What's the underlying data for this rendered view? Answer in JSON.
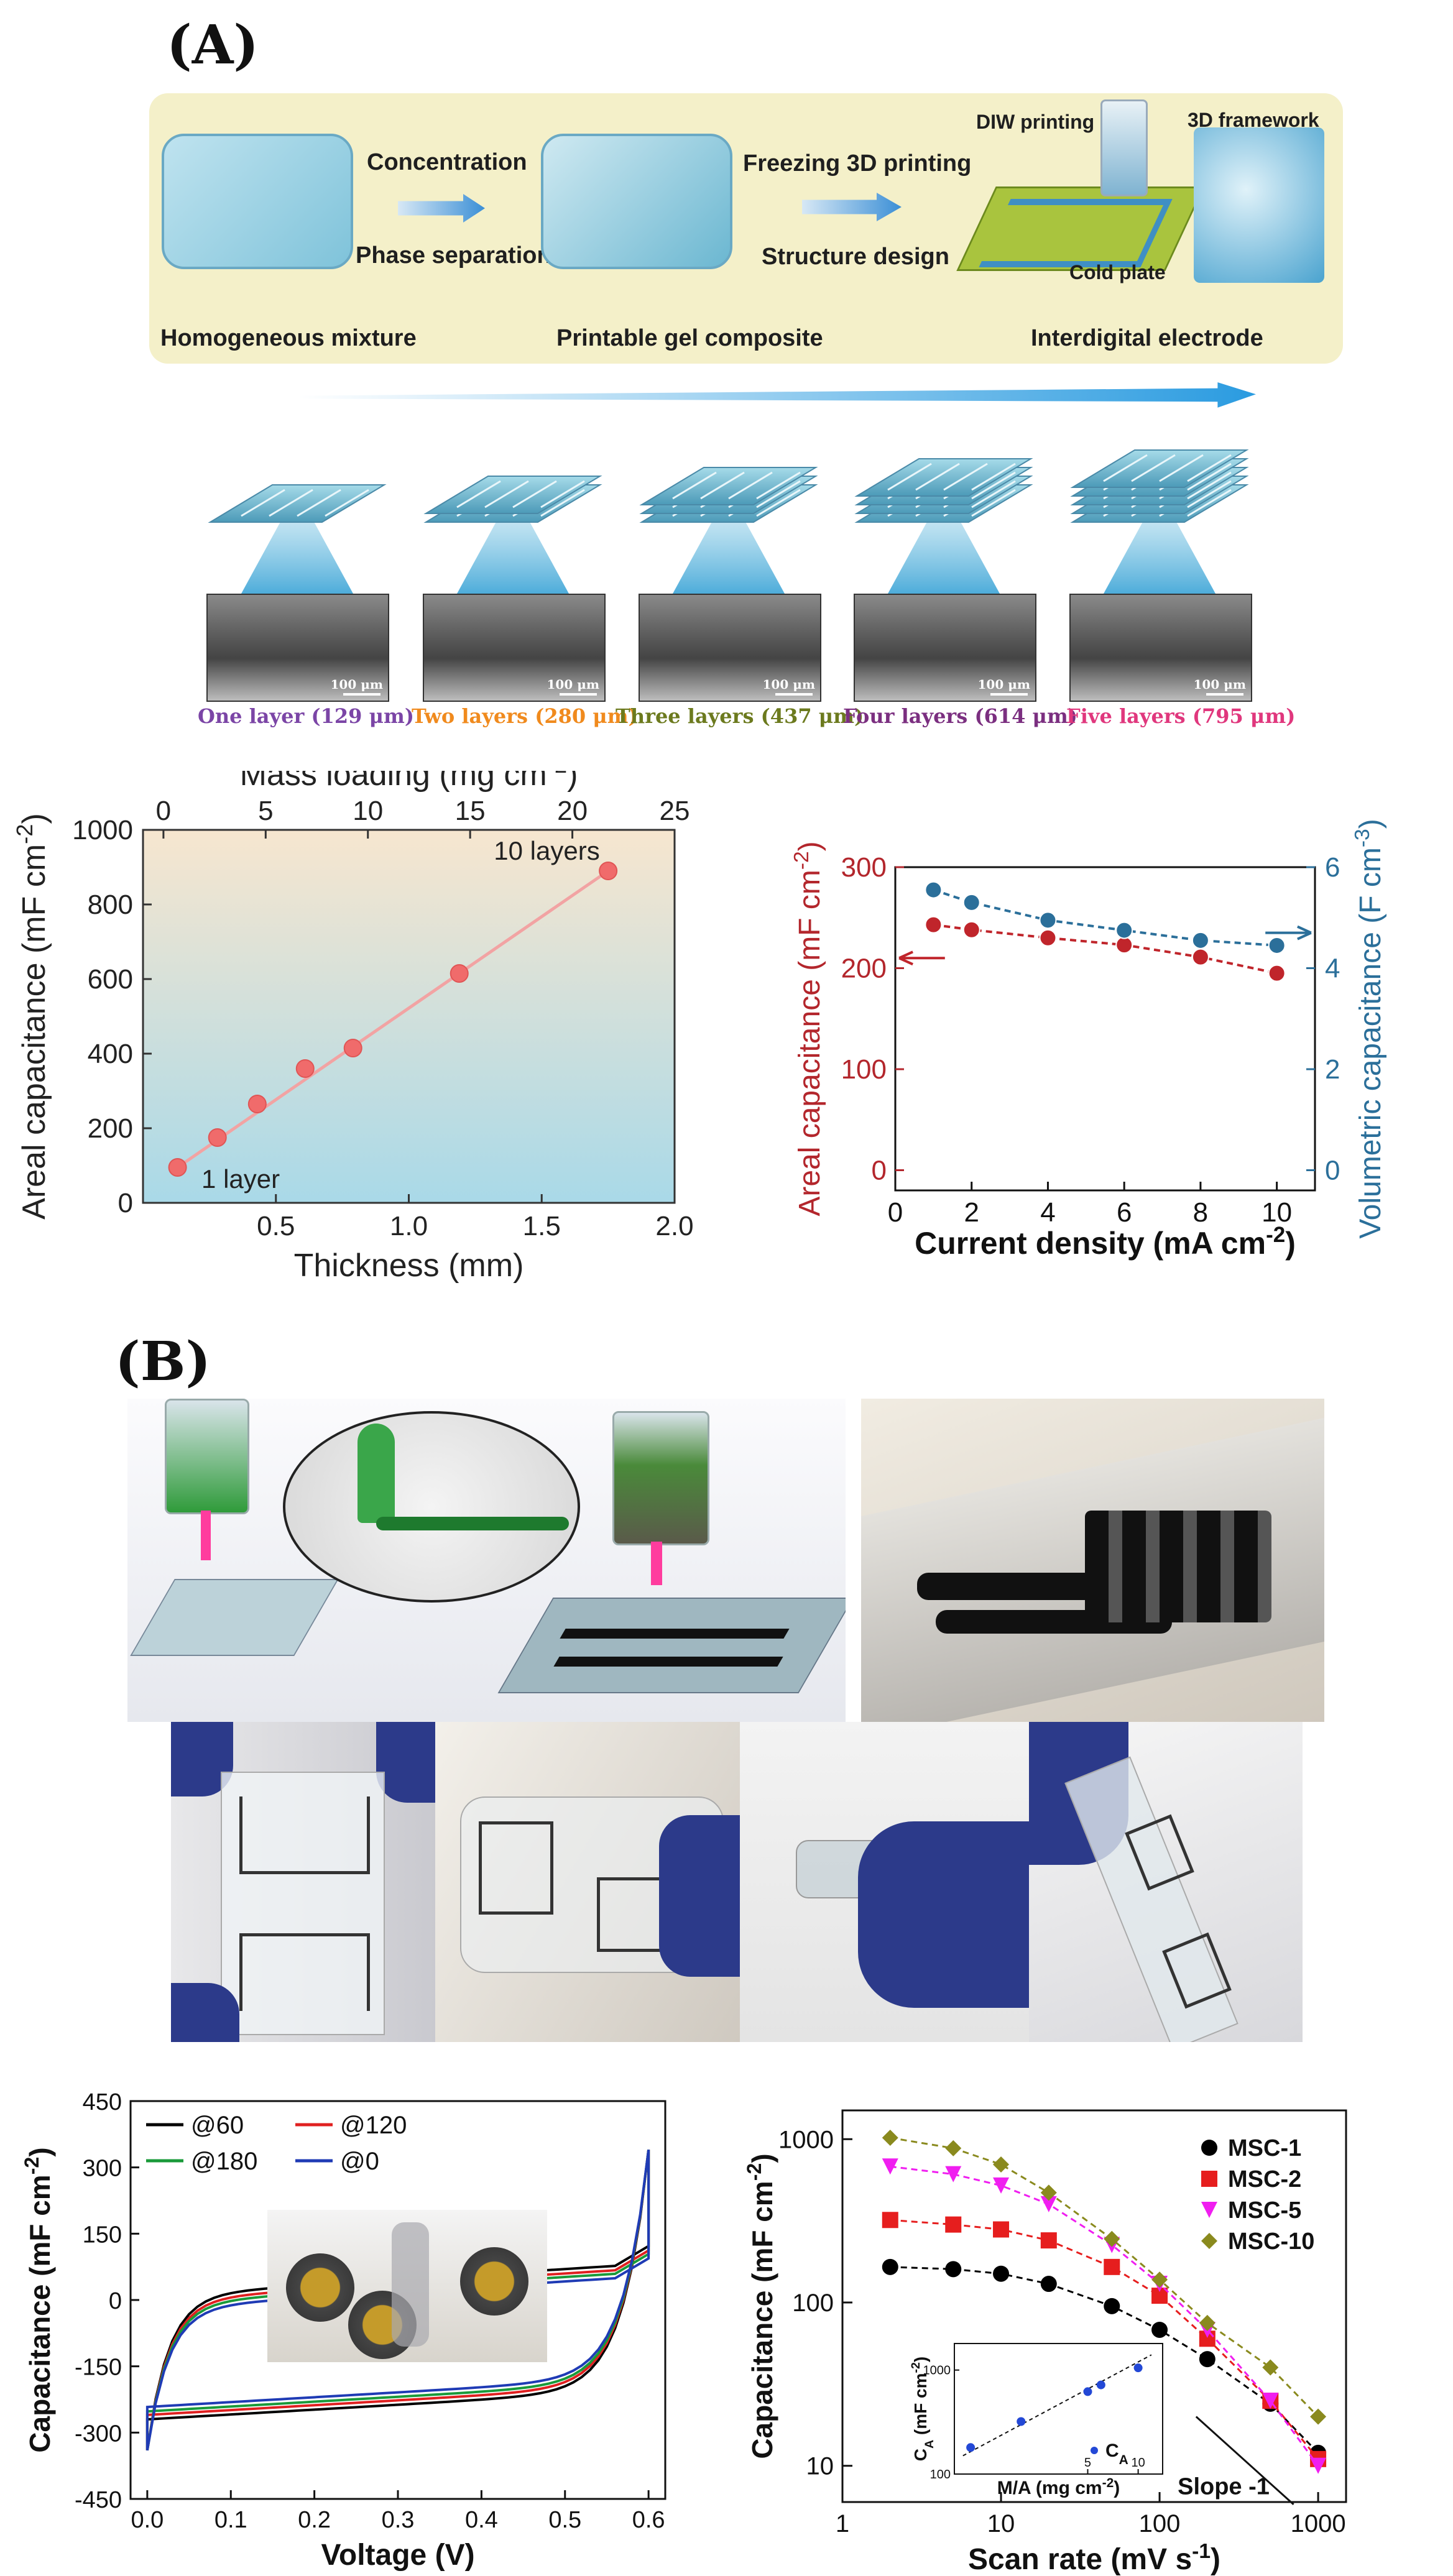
{
  "panels": {
    "a_label": "(A)",
    "b_label": "(B)"
  },
  "schematic": {
    "step1": "Concentration",
    "step2": "Phase separation",
    "step3": "Freezing 3D printing",
    "step4": "Structure design",
    "stage1": "Homogeneous mixture",
    "stage2": "Printable gel composite",
    "stage3": "Interdigital electrode",
    "diw": "DIW printing",
    "framework": "3D framework",
    "cold_plate": "Cold plate"
  },
  "layers": {
    "scale": "100 μm",
    "items": [
      {
        "label": "One layer (129 μm)",
        "color": "#7b45a6"
      },
      {
        "label": "Two layers (280 μm)",
        "color": "#f08a1d"
      },
      {
        "label": "Three layers (437 μm)",
        "color": "#6c7a1e"
      },
      {
        "label": "Four layers (614 μm)",
        "color": "#7b2f80"
      },
      {
        "label": "Five layers (795 μm)",
        "color": "#e0377d"
      }
    ]
  },
  "photos": {
    "b_top_left": "printing-schematic",
    "b_top_right": "printed-electrode-photo",
    "b_flex_1": "flexible-device-photo-1",
    "b_flex_2": "flexible-device-photo-2",
    "b_flex_3": "flexible-device-photo-3",
    "b_flex_4": "flexible-device-photo-4",
    "cv_inset": "device-photo"
  },
  "chart_data": [
    {
      "type": "scatter",
      "xlabel": "Thickness (mm)",
      "x2label": "Mass loading (mg cm",
      "x2label_sup": "-2",
      "ylabel": "Areal capacitance (mF cm",
      "ylabel_sup": "-2",
      "xlim": [
        0,
        2.0
      ],
      "ylim": [
        0,
        1000
      ],
      "x2lim": [
        -1,
        25
      ],
      "x_ticks": [
        "0.5",
        "1.0",
        "1.5",
        "2.0"
      ],
      "x2_ticks": [
        "0",
        "5",
        "10",
        "15",
        "20",
        "25"
      ],
      "y_ticks": [
        "0",
        "200",
        "400",
        "600",
        "800",
        "1000"
      ],
      "annotations": [
        "1 layer",
        "10 layers"
      ],
      "points": [
        {
          "x": 0.13,
          "y": 95
        },
        {
          "x": 0.28,
          "y": 175
        },
        {
          "x": 0.43,
          "y": 265
        },
        {
          "x": 0.61,
          "y": 360
        },
        {
          "x": 0.79,
          "y": 415
        },
        {
          "x": 1.19,
          "y": 615
        },
        {
          "x": 1.75,
          "y": 890
        }
      ],
      "colors": {
        "point": "#f06b6b",
        "line": "#f2a3a3",
        "bg_top": "#f7e6cf",
        "bg_bottom": "#a9d9e8"
      }
    },
    {
      "type": "line",
      "xlabel": "Current density (mA cm",
      "xlabel_sup": "-2",
      "ylabel": "Areal capacitance (mF cm",
      "ylabel_sup": "-2",
      "y2label": "Volumetric capacitance (F cm",
      "y2label_sup": "-3",
      "xlim": [
        0,
        11
      ],
      "ylim": [
        -20,
        300
      ],
      "y2lim": [
        -0.4,
        6
      ],
      "x_ticks": [
        "0",
        "2",
        "4",
        "6",
        "8",
        "10"
      ],
      "y_ticks": [
        "0",
        "100",
        "200",
        "300"
      ],
      "y2_ticks": [
        "0",
        "2",
        "4",
        "6"
      ],
      "series": [
        {
          "axis": "left",
          "color": "#c0252b",
          "x": [
            1,
            2,
            4,
            6,
            8,
            10
          ],
          "values": [
            243,
            238,
            230,
            223,
            211,
            195
          ]
        },
        {
          "axis": "right",
          "color": "#2b6f9a",
          "x": [
            1,
            2,
            4,
            6,
            8,
            10
          ],
          "values": [
            5.55,
            5.3,
            4.95,
            4.75,
            4.55,
            4.45
          ]
        }
      ]
    },
    {
      "type": "line",
      "xlabel": "Voltage (V)",
      "ylabel": "Capacitance (mF cm",
      "ylabel_sup": "-2",
      "xlim": [
        -0.02,
        0.62
      ],
      "ylim": [
        -450,
        450
      ],
      "x_ticks": [
        "0.0",
        "0.1",
        "0.2",
        "0.3",
        "0.4",
        "0.5",
        "0.6"
      ],
      "y_ticks": [
        "-450",
        "-300",
        "-150",
        "0",
        "150",
        "300",
        "450"
      ],
      "series": [
        {
          "name": "@60",
          "color": "#000000",
          "offset": 10
        },
        {
          "name": "@120",
          "color": "#e02020",
          "offset": 0
        },
        {
          "name": "@180",
          "color": "#1a9a3a",
          "offset": -8
        },
        {
          "name": "@0",
          "color": "#1f3bb5",
          "offset": -18
        }
      ]
    },
    {
      "type": "scatter",
      "xlabel": "Scan rate (mV s",
      "xlabel_sup": "-1",
      "ylabel": "Capacitance (mF cm",
      "ylabel_sup": "-2",
      "log_x": true,
      "log_y": true,
      "xlim": [
        1,
        1500
      ],
      "ylim": [
        6,
        1500
      ],
      "x_ticks": [
        "1",
        "10",
        "100",
        "1000"
      ],
      "y_ticks": [
        "10",
        "100",
        "1000"
      ],
      "annotation": "Slope -1",
      "series": [
        {
          "name": "MSC-1",
          "color": "#000000",
          "marker": "circle",
          "x": [
            2,
            5,
            10,
            20,
            50,
            100,
            200,
            500,
            1000
          ],
          "values": [
            165,
            160,
            150,
            130,
            95,
            68,
            45,
            24,
            12
          ]
        },
        {
          "name": "MSC-2",
          "color": "#e61e1e",
          "marker": "square",
          "x": [
            2,
            5,
            10,
            20,
            50,
            100,
            200,
            500,
            1000
          ],
          "values": [
            320,
            300,
            280,
            240,
            165,
            110,
            60,
            25,
            11
          ]
        },
        {
          "name": "MSC-5",
          "color": "#f01ef0",
          "marker": "triangle",
          "x": [
            2,
            5,
            10,
            20,
            50,
            100,
            200,
            500,
            1000
          ],
          "values": [
            680,
            610,
            520,
            400,
            225,
            130,
            68,
            25,
            10
          ]
        },
        {
          "name": "MSC-10",
          "color": "#8a8a1e",
          "marker": "diamond",
          "x": [
            2,
            5,
            10,
            20,
            50,
            100,
            200,
            500,
            1000
          ],
          "values": [
            1020,
            880,
            700,
            470,
            245,
            138,
            75,
            40,
            20
          ]
        }
      ],
      "inset": {
        "xlabel": "M/A (mg cm",
        "xlabel_sup": "-2",
        "ylabel": "C",
        "ylabel_sub": "A",
        "ylabel_tail": " (mF cm",
        "ylabel_sup": "-2",
        "legend": "C",
        "legend_sub": "A",
        "y_ticks": [
          "100",
          "1000"
        ],
        "x_ticks": [
          "5",
          "10"
        ],
        "points": [
          {
            "x": 1,
            "y": 180
          },
          {
            "x": 2,
            "y": 320
          },
          {
            "x": 5,
            "y": 620
          },
          {
            "x": 6,
            "y": 720
          },
          {
            "x": 10,
            "y": 1050
          }
        ]
      }
    }
  ]
}
